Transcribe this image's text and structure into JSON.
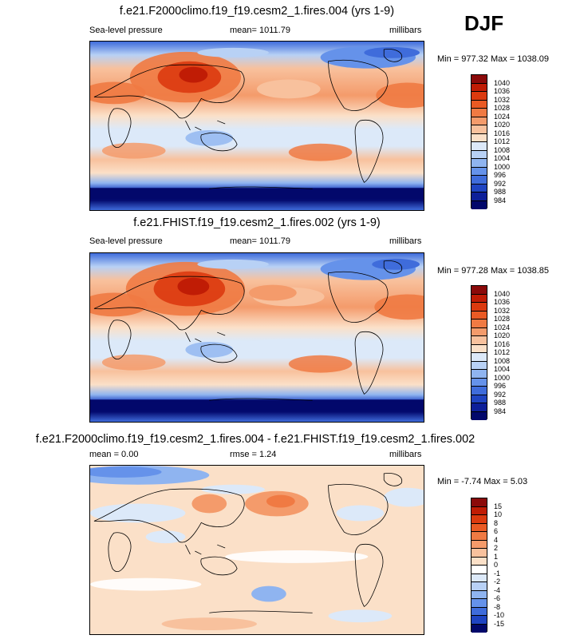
{
  "season": "DJF",
  "panels": [
    {
      "title": "f.e21.F2000climo.f19_f19.cesm2_1.fires.004 (yrs 1-9)",
      "left_label": "Sea-level pressure",
      "center_label": "mean= 1011.79",
      "right_label": "millibars",
      "minmax": "Min = 977.32 Max = 1038.09",
      "colorbar": {
        "levels": [
          "1040",
          "1036",
          "1032",
          "1028",
          "1024",
          "1020",
          "1016",
          "1012",
          "1008",
          "1004",
          "1000",
          "996",
          "992",
          "988",
          "984"
        ],
        "colors": [
          "#8b0a0a",
          "#c01c05",
          "#dc3a0f",
          "#ea5a24",
          "#f07a43",
          "#f49b6b",
          "#f8c19d",
          "#fbe0c8",
          "#dce9f9",
          "#b8d1f5",
          "#8fb4f0",
          "#6592ea",
          "#3f6cdb",
          "#1f44c2",
          "#0d1f99",
          "#02086b"
        ]
      }
    },
    {
      "title": "f.e21.FHIST.f19_f19.cesm2_1.fires.002 (yrs 1-9)",
      "left_label": "Sea-level pressure",
      "center_label": "mean= 1011.79",
      "right_label": "millibars",
      "minmax": "Min = 977.28 Max = 1038.85",
      "colorbar": {
        "levels": [
          "1040",
          "1036",
          "1032",
          "1028",
          "1024",
          "1020",
          "1016",
          "1012",
          "1008",
          "1004",
          "1000",
          "996",
          "992",
          "988",
          "984"
        ],
        "colors": [
          "#8b0a0a",
          "#c01c05",
          "#dc3a0f",
          "#ea5a24",
          "#f07a43",
          "#f49b6b",
          "#f8c19d",
          "#fbe0c8",
          "#dce9f9",
          "#b8d1f5",
          "#8fb4f0",
          "#6592ea",
          "#3f6cdb",
          "#1f44c2",
          "#0d1f99",
          "#02086b"
        ]
      }
    },
    {
      "title": "f.e21.F2000climo.f19_f19.cesm2_1.fires.004 - f.e21.FHIST.f19_f19.cesm2_1.fires.002",
      "left_label": "mean =   0.00",
      "center_label": "rmse =   1.24",
      "right_label": "millibars",
      "minmax": "Min =  -7.74 Max =   5.03",
      "colorbar": {
        "levels": [
          "15",
          "10",
          "8",
          "6",
          "4",
          "2",
          "1",
          "0",
          "-1",
          "-2",
          "-4",
          "-6",
          "-8",
          "-10",
          "-15"
        ],
        "colors": [
          "#8b0a0a",
          "#c01c05",
          "#dc3a0f",
          "#ea5a24",
          "#f07a43",
          "#f49b6b",
          "#f8c19d",
          "#fbe0c8",
          "#ffffff",
          "#dce9f9",
          "#b8d1f5",
          "#8fb4f0",
          "#6592ea",
          "#3f6cdb",
          "#1f44c2",
          "#02086b"
        ]
      }
    }
  ]
}
